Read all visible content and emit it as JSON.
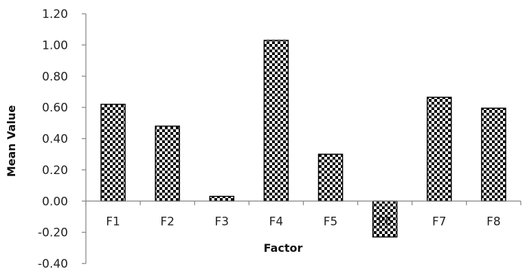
{
  "chart_data": {
    "type": "bar",
    "title": "",
    "xlabel": "Factor",
    "ylabel": "Mean Value",
    "categories": [
      "F1",
      "F2",
      "F3",
      "F4",
      "F5",
      "F6",
      "F7",
      "F8"
    ],
    "values": [
      0.62,
      0.48,
      0.03,
      1.03,
      0.3,
      -0.23,
      0.665,
      0.595
    ],
    "ylim": [
      -0.4,
      1.2
    ],
    "yticks": [
      "-0.40",
      "-0.20",
      "0.00",
      "0.20",
      "0.40",
      "0.60",
      "0.80",
      "1.00",
      "1.20"
    ],
    "grid": false,
    "legend": "none",
    "bar_pattern": "checkerboard",
    "colors": {
      "pattern_dark": "#000000",
      "pattern_light": "#ffffff",
      "axis": "#808080"
    }
  }
}
